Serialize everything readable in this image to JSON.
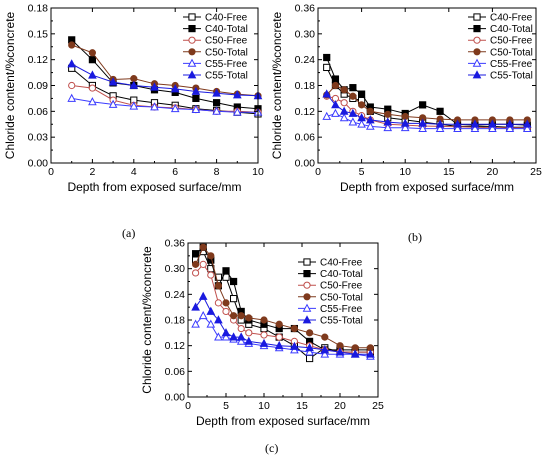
{
  "figure": {
    "panel_labels": [
      "(a)",
      "(b)",
      "(c)"
    ]
  },
  "colors": {
    "C40-Free": "#000000",
    "C40-Total": "#000000",
    "C50-Free": "#c0504d",
    "C50-Total": "#7f3a1d",
    "C55-Free": "#3b3bff",
    "C55-Total": "#1a1adf"
  },
  "chart_data": [
    {
      "type": "line",
      "panel": "(a)",
      "xlabel": "Depth from exposed surface/mm",
      "ylabel": "Chloride content/%concrete",
      "xlim": [
        0,
        10
      ],
      "ylim": [
        0,
        0.18
      ],
      "xticks": [
        "0",
        "2",
        "4",
        "6",
        "8",
        "10"
      ],
      "yticks": [
        "0.00",
        "0.03",
        "0.06",
        "0.09",
        "0.12",
        "0.15",
        "0.18"
      ],
      "legend_position": "top-right",
      "series": [
        {
          "name": "C40-Free",
          "marker": "square-open",
          "x": [
            1,
            2,
            3,
            4,
            5,
            6,
            7,
            8,
            9,
            10
          ],
          "values": [
            0.11,
            0.09,
            0.078,
            0.073,
            0.07,
            0.067,
            0.063,
            0.061,
            0.059,
            0.057
          ]
        },
        {
          "name": "C40-Total",
          "marker": "square-filled",
          "x": [
            1,
            2,
            3,
            4,
            5,
            6,
            7,
            8,
            9,
            10
          ],
          "values": [
            0.143,
            0.12,
            0.093,
            0.09,
            0.085,
            0.082,
            0.075,
            0.07,
            0.065,
            0.063
          ]
        },
        {
          "name": "C50-Free",
          "marker": "circle-open",
          "x": [
            1,
            2,
            3,
            4,
            5,
            6,
            7,
            8,
            9,
            10
          ],
          "values": [
            0.09,
            0.087,
            0.073,
            0.067,
            0.065,
            0.064,
            0.062,
            0.06,
            0.06,
            0.059
          ]
        },
        {
          "name": "C50-Total",
          "marker": "circle-filled",
          "x": [
            1,
            2,
            3,
            4,
            5,
            6,
            7,
            8,
            9,
            10
          ],
          "values": [
            0.137,
            0.128,
            0.097,
            0.098,
            0.092,
            0.09,
            0.087,
            0.083,
            0.08,
            0.078
          ]
        },
        {
          "name": "C55-Free",
          "marker": "triangle-open",
          "x": [
            1,
            2,
            3,
            4,
            5,
            6,
            7,
            8,
            9,
            10
          ],
          "values": [
            0.075,
            0.071,
            0.068,
            0.066,
            0.065,
            0.063,
            0.062,
            0.06,
            0.059,
            0.059
          ]
        },
        {
          "name": "C55-Total",
          "marker": "triangle-filled",
          "x": [
            1,
            2,
            3,
            4,
            5,
            6,
            7,
            8,
            9,
            10
          ],
          "values": [
            0.115,
            0.102,
            0.094,
            0.09,
            0.088,
            0.086,
            0.083,
            0.081,
            0.079,
            0.078
          ]
        }
      ]
    },
    {
      "type": "line",
      "panel": "(b)",
      "xlabel": "Depth from exposed surface/mm",
      "ylabel": "Chloride content/%concrete",
      "xlim": [
        0,
        25
      ],
      "ylim": [
        0,
        0.36
      ],
      "xticks": [
        "0",
        "5",
        "10",
        "15",
        "20",
        "25"
      ],
      "yticks": [
        "0.00",
        "0.06",
        "0.12",
        "0.18",
        "0.24",
        "0.30",
        "0.36"
      ],
      "legend_position": "top-right",
      "series": [
        {
          "name": "C40-Free",
          "marker": "square-open",
          "x": [
            1,
            2,
            3,
            4,
            5,
            6,
            8,
            10,
            12,
            14,
            16,
            18,
            20,
            22,
            24
          ],
          "values": [
            0.222,
            0.18,
            0.16,
            0.15,
            0.145,
            0.12,
            0.105,
            0.1,
            0.095,
            0.09,
            0.085,
            0.085,
            0.085,
            0.083,
            0.083
          ]
        },
        {
          "name": "C40-Total",
          "marker": "square-filled",
          "x": [
            1,
            2,
            3,
            4,
            5,
            6,
            8,
            10,
            12,
            14,
            16,
            18,
            20,
            22,
            24
          ],
          "values": [
            0.245,
            0.195,
            0.17,
            0.175,
            0.16,
            0.13,
            0.125,
            0.115,
            0.135,
            0.12,
            0.09,
            0.088,
            0.09,
            0.09,
            0.088
          ]
        },
        {
          "name": "C50-Free",
          "marker": "circle-open",
          "x": [
            1,
            2,
            3,
            4,
            5,
            6,
            8,
            10,
            12,
            14,
            16,
            18,
            20,
            22,
            24
          ],
          "values": [
            0.155,
            0.15,
            0.14,
            0.12,
            0.11,
            0.1,
            0.09,
            0.088,
            0.086,
            0.085,
            0.084,
            0.083,
            0.082,
            0.082,
            0.082
          ]
        },
        {
          "name": "C50-Total",
          "marker": "circle-filled",
          "x": [
            1,
            2,
            3,
            4,
            5,
            6,
            8,
            10,
            12,
            14,
            16,
            18,
            20,
            22,
            24
          ],
          "values": [
            0.158,
            0.18,
            0.17,
            0.155,
            0.135,
            0.12,
            0.113,
            0.108,
            0.105,
            0.102,
            0.1,
            0.1,
            0.1,
            0.1,
            0.1
          ]
        },
        {
          "name": "C55-Free",
          "marker": "triangle-open",
          "x": [
            1,
            2,
            3,
            4,
            5,
            6,
            8,
            10,
            12,
            14,
            16,
            18,
            20,
            22,
            24
          ],
          "values": [
            0.108,
            0.115,
            0.105,
            0.095,
            0.09,
            0.085,
            0.082,
            0.082,
            0.08,
            0.08,
            0.08,
            0.08,
            0.08,
            0.08,
            0.08
          ]
        },
        {
          "name": "C55-Total",
          "marker": "triangle-filled",
          "x": [
            1,
            2,
            3,
            4,
            5,
            6,
            8,
            10,
            12,
            14,
            16,
            18,
            20,
            22,
            24
          ],
          "values": [
            0.16,
            0.135,
            0.12,
            0.115,
            0.105,
            0.1,
            0.095,
            0.092,
            0.092,
            0.09,
            0.09,
            0.09,
            0.09,
            0.09,
            0.09
          ]
        }
      ]
    },
    {
      "type": "line",
      "panel": "(c)",
      "xlabel": "Depth from exposed surface/mm",
      "ylabel": "Chloride content/%concrete",
      "xlim": [
        0,
        25
      ],
      "ylim": [
        0,
        0.36
      ],
      "xticks": [
        "0",
        "5",
        "10",
        "15",
        "20",
        "25"
      ],
      "yticks": [
        "0.00",
        "0.06",
        "0.12",
        "0.18",
        "0.24",
        "0.30",
        "0.36"
      ],
      "legend_position": "top-right",
      "series": [
        {
          "name": "C40-Free",
          "marker": "square-open",
          "x": [
            1,
            2,
            3,
            4,
            5,
            6,
            7,
            8,
            10,
            12,
            14,
            16,
            18,
            20,
            22,
            24
          ],
          "values": [
            0.32,
            0.34,
            0.3,
            0.28,
            0.28,
            0.23,
            0.18,
            0.17,
            0.16,
            0.14,
            0.12,
            0.09,
            0.115,
            0.105,
            0.105,
            0.105
          ]
        },
        {
          "name": "C40-Total",
          "marker": "square-filled",
          "x": [
            1,
            2,
            3,
            4,
            5,
            6,
            7,
            8,
            10,
            12,
            14,
            16,
            18,
            20,
            22,
            24
          ],
          "values": [
            0.335,
            0.35,
            0.32,
            0.26,
            0.295,
            0.27,
            0.2,
            0.18,
            0.17,
            0.16,
            0.16,
            0.13,
            0.11,
            0.11,
            0.11,
            0.11
          ]
        },
        {
          "name": "C50-Free",
          "marker": "circle-open",
          "x": [
            1,
            2,
            3,
            4,
            5,
            6,
            7,
            8,
            10,
            12,
            14,
            16,
            18,
            20,
            22,
            24
          ],
          "values": [
            0.29,
            0.31,
            0.285,
            0.22,
            0.2,
            0.18,
            0.16,
            0.15,
            0.145,
            0.14,
            0.13,
            0.12,
            0.11,
            0.105,
            0.105,
            0.105
          ]
        },
        {
          "name": "C50-Total",
          "marker": "circle-filled",
          "x": [
            1,
            2,
            3,
            4,
            5,
            6,
            7,
            8,
            10,
            12,
            14,
            16,
            18,
            20,
            22,
            24
          ],
          "values": [
            0.31,
            0.35,
            0.33,
            0.26,
            0.22,
            0.19,
            0.19,
            0.185,
            0.18,
            0.17,
            0.16,
            0.15,
            0.14,
            0.12,
            0.115,
            0.115
          ]
        },
        {
          "name": "C55-Free",
          "marker": "triangle-open",
          "x": [
            1,
            2,
            3,
            4,
            5,
            6,
            7,
            8,
            10,
            12,
            14,
            16,
            18,
            20,
            22,
            24
          ],
          "values": [
            0.17,
            0.19,
            0.17,
            0.14,
            0.14,
            0.135,
            0.13,
            0.125,
            0.12,
            0.115,
            0.11,
            0.105,
            0.1,
            0.1,
            0.1,
            0.095
          ]
        },
        {
          "name": "C55-Total",
          "marker": "triangle-filled",
          "x": [
            1,
            2,
            3,
            4,
            5,
            6,
            7,
            8,
            10,
            12,
            14,
            16,
            18,
            20,
            22,
            24
          ],
          "values": [
            0.21,
            0.235,
            0.2,
            0.18,
            0.15,
            0.14,
            0.14,
            0.13,
            0.125,
            0.12,
            0.118,
            0.115,
            0.11,
            0.105,
            0.1,
            0.1
          ]
        }
      ]
    }
  ]
}
